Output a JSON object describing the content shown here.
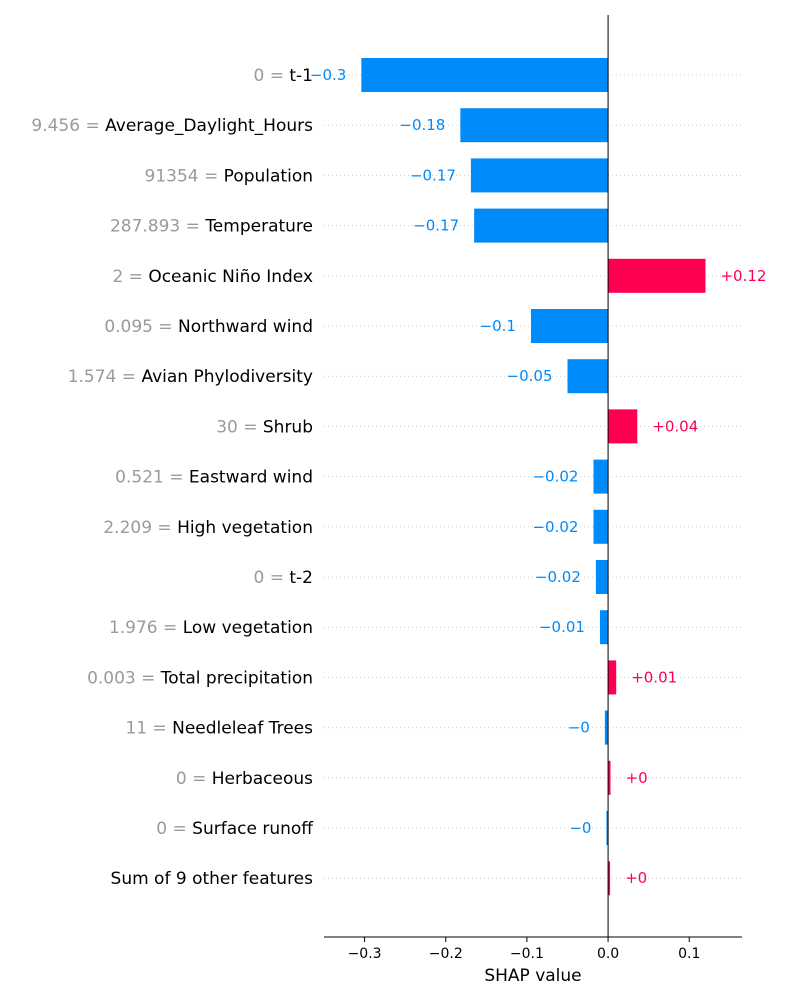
{
  "chart_data": {
    "type": "bar",
    "orientation": "horizontal",
    "xlabel": "SHAP value",
    "xlim": [
      -0.35,
      0.165
    ],
    "xticks": [
      {
        "value": -0.3,
        "label": "−0.3"
      },
      {
        "value": -0.2,
        "label": "−0.2"
      },
      {
        "value": -0.1,
        "label": "−0.1"
      },
      {
        "value": 0.0,
        "label": "0.0"
      },
      {
        "value": 0.1,
        "label": "0.1"
      }
    ],
    "grid": true,
    "colors": {
      "positive": "#ff0051",
      "negative": "#008bfb",
      "axis": "#000000",
      "muted": "#9a9a9a"
    },
    "features": [
      {
        "value_text": "0",
        "name": "t-1",
        "shap": -0.304,
        "label": "−0.3"
      },
      {
        "value_text": "9.456",
        "name": "Average_Daylight_Hours",
        "shap": -0.182,
        "label": "−0.18"
      },
      {
        "value_text": "91354",
        "name": "Population",
        "shap": -0.169,
        "label": "−0.17"
      },
      {
        "value_text": "287.893",
        "name": "Temperature",
        "shap": -0.165,
        "label": "−0.17"
      },
      {
        "value_text": "2",
        "name": "Oceanic Niño Index",
        "shap": 0.12,
        "label": "+0.12"
      },
      {
        "value_text": "0.095",
        "name": "Northward wind",
        "shap": -0.095,
        "label": "−0.1"
      },
      {
        "value_text": "1.574",
        "name": "Avian Phylodiversity",
        "shap": -0.05,
        "label": "−0.05"
      },
      {
        "value_text": "30",
        "name": "Shrub",
        "shap": 0.036,
        "label": "+0.04"
      },
      {
        "value_text": "0.521",
        "name": "Eastward wind",
        "shap": -0.018,
        "label": "−0.02"
      },
      {
        "value_text": "2.209",
        "name": "High vegetation",
        "shap": -0.018,
        "label": "−0.02"
      },
      {
        "value_text": "0",
        "name": "t-2",
        "shap": -0.015,
        "label": "−0.02"
      },
      {
        "value_text": "1.976",
        "name": "Low vegetation",
        "shap": -0.01,
        "label": "−0.01"
      },
      {
        "value_text": "0.003",
        "name": "Total precipitation",
        "shap": 0.01,
        "label": "+0.01"
      },
      {
        "value_text": "11",
        "name": "Needleleaf Trees",
        "shap": -0.004,
        "label": "−0"
      },
      {
        "value_text": "0",
        "name": "Herbaceous",
        "shap": 0.003,
        "label": "+0"
      },
      {
        "value_text": "0",
        "name": "Surface runoff",
        "shap": -0.002,
        "label": "−0"
      },
      {
        "value_text": "",
        "name": "Sum of 9 other features",
        "shap": 0.002,
        "label": "+0"
      }
    ]
  }
}
